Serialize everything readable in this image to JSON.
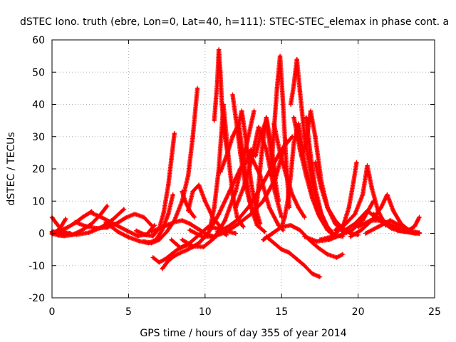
{
  "chart_data": {
    "type": "scatter",
    "title": "dSTEC Iono. truth (ebre, Lon=0, Lat=40, h=111): STEC-STEC_elemax in phase cont. a",
    "xlabel": "GPS time / hours of day 355 of year 2014",
    "ylabel": "dSTEC  / TECUs",
    "xlim": [
      0,
      25
    ],
    "ylim": [
      -20,
      60
    ],
    "xticks": [
      0,
      5,
      10,
      15,
      20,
      25
    ],
    "yticks": [
      -20,
      -10,
      0,
      10,
      20,
      30,
      40,
      50,
      60
    ],
    "grid": true,
    "marker": "+",
    "series_color": "#ff0000",
    "series": [
      {
        "x": [
          0.0,
          0.5,
          1.0,
          1.5,
          2.0,
          2.6
        ],
        "y": [
          0.3,
          0.8,
          1.8,
          3.2,
          5.0,
          6.8
        ]
      },
      {
        "x": [
          0.0,
          0.4,
          0.8,
          1.3,
          1.9,
          2.6,
          3.2,
          3.6
        ],
        "y": [
          0.0,
          -0.6,
          -0.8,
          -0.5,
          0.8,
          3.0,
          6.0,
          8.5
        ]
      },
      {
        "x": [
          0.0,
          0.4,
          0.9,
          1.6,
          2.4,
          3.2,
          4.0,
          4.7
        ],
        "y": [
          0.6,
          0.1,
          -0.2,
          -0.4,
          0.2,
          1.8,
          4.4,
          7.5
        ]
      },
      {
        "x": [
          0.0,
          0.3,
          0.6,
          0.9,
          1.2
        ],
        "y": [
          5.0,
          3.0,
          1.2,
          0.2,
          0.0
        ]
      },
      {
        "x": [
          0.0,
          0.3,
          0.6,
          0.9
        ],
        "y": [
          -0.3,
          0.5,
          2.2,
          4.5
        ]
      },
      {
        "x": [
          1.5,
          2.2,
          2.9,
          3.6,
          4.2,
          4.8,
          5.4,
          6.0,
          6.5
        ],
        "y": [
          3.5,
          2.2,
          1.6,
          1.8,
          3.0,
          4.8,
          6.0,
          5.0,
          2.5
        ]
      },
      {
        "x": [
          2.5,
          3.3,
          4.1,
          4.9,
          5.6,
          6.2,
          6.7
        ],
        "y": [
          6.5,
          4.8,
          2.8,
          0.8,
          -0.8,
          -0.3,
          2.5
        ]
      },
      {
        "x": [
          3.5,
          4.3,
          5.0,
          5.7,
          6.3,
          6.8,
          7.2,
          7.6,
          7.9
        ],
        "y": [
          3.5,
          0.5,
          -1.2,
          -2.4,
          -3.0,
          -2.0,
          1.0,
          6.0,
          12.0
        ]
      },
      {
        "x": [
          5.5,
          6.1,
          6.6,
          7.0,
          7.3,
          7.6,
          7.8,
          8.0
        ],
        "y": [
          0.8,
          -0.5,
          -0.8,
          1.5,
          6.5,
          15.0,
          23.0,
          31.0
        ]
      },
      {
        "x": [
          6.0,
          6.5,
          7.0,
          7.5,
          8.0,
          8.5,
          8.9,
          9.2,
          9.5
        ],
        "y": [
          -2.5,
          -3.0,
          -2.0,
          0.5,
          4.0,
          10.0,
          18.0,
          30.0,
          45.0
        ]
      },
      {
        "x": [
          6.5,
          7.0,
          7.5,
          8.0,
          8.5,
          9.0,
          9.5,
          10.0,
          10.5
        ],
        "y": [
          0.5,
          1.5,
          2.5,
          3.5,
          4.0,
          3.0,
          1.5,
          0.0,
          -1.0
        ]
      },
      {
        "x": [
          6.6,
          7.0,
          7.4,
          7.8,
          8.2,
          8.6,
          9.0
        ],
        "y": [
          -7.5,
          -9.0,
          -8.0,
          -6.5,
          -5.0,
          -4.0,
          -3.5
        ]
      },
      {
        "x": [
          7.2,
          7.6,
          8.0,
          8.4,
          8.8,
          9.2,
          9.6,
          10.0
        ],
        "y": [
          -11.0,
          -8.5,
          -7.0,
          -6.0,
          -5.2,
          -4.2,
          -3.0,
          -1.0
        ]
      },
      {
        "x": [
          7.8,
          8.4,
          9.0,
          9.6,
          10.2,
          10.8,
          11.4
        ],
        "y": [
          -2.0,
          -4.5,
          -3.0,
          -0.5,
          2.0,
          1.5,
          -0.5
        ]
      },
      {
        "x": [
          8.5,
          9.2,
          9.9,
          10.6,
          11.3,
          12.0,
          12.6,
          13.2
        ],
        "y": [
          -2.0,
          -4.0,
          -4.2,
          -1.5,
          4.0,
          13.0,
          25.0,
          38.0
        ]
      },
      {
        "x": [
          8.9,
          9.2,
          9.6,
          10.0,
          10.5,
          11.0,
          11.5,
          12.0
        ],
        "y": [
          7.0,
          13.0,
          15.0,
          10.0,
          5.0,
          2.0,
          0.5,
          0.0
        ]
      },
      {
        "x": [
          8.5,
          8.7,
          9.0,
          9.3
        ],
        "y": [
          13.0,
          10.0,
          7.0,
          5.0
        ]
      },
      {
        "x": [
          9.0,
          9.8,
          10.6,
          11.4,
          12.2,
          13.0,
          13.8,
          14.6,
          15.3
        ],
        "y": [
          1.0,
          -1.0,
          -1.0,
          0.5,
          3.0,
          6.0,
          10.0,
          17.0,
          29.0
        ]
      },
      {
        "x": [
          9.5,
          10.2,
          10.9,
          11.6,
          12.3,
          13.0,
          13.6,
          14.2,
          14.8,
          15.1
        ],
        "y": [
          -3.5,
          0.0,
          6.0,
          13.0,
          20.0,
          24.0,
          18.0,
          8.0,
          2.5,
          1.0
        ]
      },
      {
        "x": [
          10.3,
          10.6,
          10.9,
          11.2,
          11.5,
          11.8,
          12.1,
          12.5
        ],
        "y": [
          1.0,
          8.0,
          20.0,
          40.0,
          25.0,
          12.0,
          5.0,
          2.0
        ]
      },
      {
        "x": [
          10.6,
          10.8,
          10.9,
          11.0,
          11.1,
          11.3,
          11.5
        ],
        "y": [
          35.0,
          47.0,
          57.0,
          50.0,
          40.0,
          30.0,
          24.0
        ]
      },
      {
        "x": [
          10.8,
          11.5,
          12.2,
          12.9,
          13.6,
          14.3,
          15.0,
          15.7
        ],
        "y": [
          0.5,
          2.0,
          4.5,
          8.5,
          14.0,
          20.0,
          26.0,
          30.0
        ]
      },
      {
        "x": [
          11.0,
          11.4,
          11.8,
          12.2,
          12.6,
          13.0,
          13.4,
          13.9
        ],
        "y": [
          19.0,
          24.0,
          30.0,
          34.0,
          20.0,
          8.0,
          2.5,
          0.5
        ]
      },
      {
        "x": [
          11.8,
          12.0,
          12.3,
          12.6,
          12.9,
          13.2,
          13.5
        ],
        "y": [
          43.0,
          36.0,
          25.0,
          16.0,
          10.0,
          6.0,
          3.5
        ]
      },
      {
        "x": [
          12.2,
          12.4,
          12.7,
          13.0,
          13.3,
          13.6
        ],
        "y": [
          34.0,
          38.0,
          28.0,
          16.0,
          8.0,
          3.0
        ]
      },
      {
        "x": [
          12.0,
          12.5,
          13.0,
          13.5,
          14.0,
          14.5,
          15.0
        ],
        "y": [
          8.0,
          14.0,
          22.0,
          33.0,
          26.0,
          14.0,
          5.0
        ]
      },
      {
        "x": [
          12.7,
          13.0,
          13.3,
          13.6,
          14.0,
          14.4,
          14.8
        ],
        "y": [
          22.0,
          26.0,
          24.0,
          30.0,
          35.0,
          22.0,
          10.0
        ]
      },
      {
        "x": [
          13.3,
          13.5,
          13.7,
          14.0,
          14.3,
          14.6
        ],
        "y": [
          5.0,
          15.0,
          25.0,
          36.0,
          28.0,
          18.0
        ]
      },
      {
        "x": [
          14.0,
          14.5,
          15.0,
          15.5,
          16.0,
          16.5,
          17.0,
          17.5
        ],
        "y": [
          -1.0,
          -3.0,
          -5.0,
          -6.0,
          -8.0,
          -10.0,
          -12.5,
          -13.5
        ]
      },
      {
        "x": [
          14.3,
          14.5,
          14.7,
          14.9,
          15.1,
          15.3,
          15.5
        ],
        "y": [
          18.0,
          32.0,
          45.0,
          55.0,
          40.0,
          22.0,
          8.0
        ]
      },
      {
        "x": [
          14.5,
          14.9,
          15.3,
          15.7,
          16.1,
          16.5
        ],
        "y": [
          34.0,
          25.0,
          18.0,
          12.0,
          8.0,
          5.0
        ]
      },
      {
        "x": [
          15.0,
          15.2,
          15.4,
          15.6,
          15.8,
          16.1,
          16.5,
          17.0,
          17.5,
          18.0,
          18.5
        ],
        "y": [
          2.0,
          5.0,
          10.0,
          18.0,
          28.0,
          34.0,
          22.0,
          12.0,
          5.0,
          1.0,
          -1.0
        ]
      },
      {
        "x": [
          15.6,
          15.8,
          16.0,
          16.2,
          16.5,
          17.0,
          17.5,
          18.0
        ],
        "y": [
          40.0,
          46.0,
          54.0,
          44.0,
          30.0,
          16.0,
          7.0,
          2.0
        ]
      },
      {
        "x": [
          15.8,
          16.2,
          16.6,
          17.0,
          17.4,
          17.8,
          18.2
        ],
        "y": [
          36.0,
          26.0,
          18.0,
          11.0,
          6.0,
          3.0,
          1.0
        ]
      },
      {
        "x": [
          16.3,
          16.6,
          16.9,
          17.2,
          17.6,
          18.0,
          18.5,
          19.0
        ],
        "y": [
          24.0,
          28.0,
          38.0,
          30.0,
          16.0,
          8.0,
          3.0,
          0.5
        ]
      },
      {
        "x": [
          16.6,
          16.9,
          17.2,
          17.6,
          18.0,
          18.5,
          19.0
        ],
        "y": [
          36.0,
          24.0,
          14.0,
          6.0,
          1.5,
          -0.5,
          -1.0
        ]
      },
      {
        "x": [
          17.2,
          17.6,
          18.0,
          18.5,
          19.0,
          19.5,
          20.0
        ],
        "y": [
          22.0,
          14.0,
          8.0,
          4.0,
          1.5,
          0.0,
          -0.5
        ]
      },
      {
        "x": [
          13.8,
          14.4,
          15.0,
          15.6,
          16.2,
          16.8,
          17.4,
          18.0,
          18.6,
          19.0
        ],
        "y": [
          -2.0,
          0.0,
          2.0,
          2.5,
          1.0,
          -2.0,
          -4.5,
          -6.5,
          -7.5,
          -6.5
        ]
      },
      {
        "x": [
          16.5,
          17.3,
          18.1,
          18.9,
          19.6,
          20.3,
          21.0
        ],
        "y": [
          -1.0,
          -2.5,
          -2.0,
          -0.5,
          1.0,
          4.0,
          10.0
        ]
      },
      {
        "x": [
          17.5,
          18.3,
          19.0,
          19.4,
          19.7,
          19.9
        ],
        "y": [
          -2.0,
          -1.0,
          2.0,
          8.0,
          16.0,
          22.0
        ]
      },
      {
        "x": [
          18.5,
          19.2,
          19.8,
          20.3,
          20.6,
          20.9,
          21.3,
          21.8
        ],
        "y": [
          1.0,
          3.0,
          6.0,
          12.0,
          21.0,
          14.0,
          7.0,
          2.5
        ]
      },
      {
        "x": [
          19.5,
          20.2,
          20.9,
          21.5,
          21.9,
          22.3,
          22.8,
          23.3
        ],
        "y": [
          -1.0,
          1.0,
          4.0,
          8.0,
          12.0,
          7.0,
          3.0,
          1.0
        ]
      },
      {
        "x": [
          19.0,
          19.8,
          20.6,
          21.4,
          22.2,
          23.0,
          23.6,
          24.0
        ],
        "y": [
          0.5,
          3.0,
          7.0,
          4.0,
          1.5,
          0.5,
          0.2,
          0.0
        ]
      },
      {
        "x": [
          20.0,
          20.8,
          21.6,
          22.4,
          23.2,
          23.7,
          24.0
        ],
        "y": [
          2.0,
          4.0,
          4.0,
          2.0,
          0.5,
          0.0,
          0.0
        ]
      },
      {
        "x": [
          21.0,
          21.8,
          22.6,
          23.2,
          23.7,
          24.0
        ],
        "y": [
          6.0,
          3.0,
          0.8,
          0.6,
          2.2,
          5.0
        ]
      },
      {
        "x": [
          20.5,
          21.3,
          22.1,
          22.9,
          23.6,
          24.0
        ],
        "y": [
          0.0,
          2.0,
          4.0,
          2.0,
          0.5,
          0.2
        ]
      }
    ]
  }
}
